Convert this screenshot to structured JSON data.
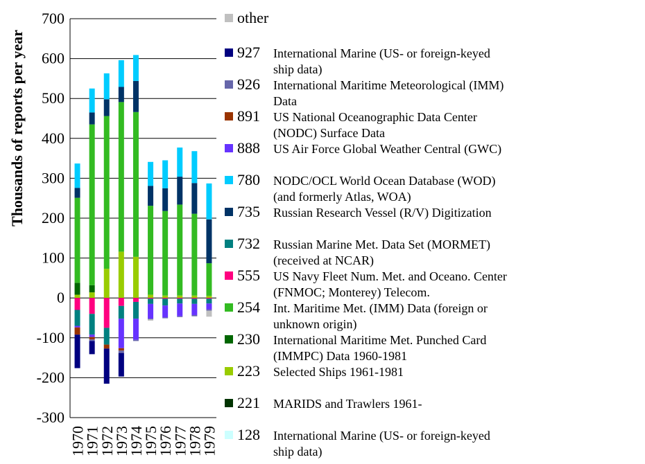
{
  "chart_data": {
    "type": "bar",
    "stacked": true,
    "ylabel": "Thousands of reports per year",
    "xlabel": "",
    "ylim": [
      -300,
      700
    ],
    "yticks": [
      700,
      600,
      500,
      400,
      300,
      200,
      100,
      0,
      -100,
      -200,
      -300
    ],
    "ytick_labels": [
      "700",
      "600",
      "500",
      "400",
      "300",
      "200",
      "100",
      "0",
      "-100",
      "-200",
      "-300"
    ],
    "categories": [
      "1970",
      "1971",
      "1972",
      "1973",
      "1974",
      "1975",
      "1976",
      "1977",
      "1978",
      "1979"
    ],
    "grid": "horizontal",
    "legend_position": "right",
    "series": [
      {
        "code": "other",
        "name": "",
        "color": "#c0c0c0",
        "values": [
          0,
          0,
          0,
          0,
          0,
          -3,
          0,
          0,
          0,
          -15
        ]
      },
      {
        "code": "927",
        "name": "International Marine (US- or foreign-keyed ship data)",
        "color": "#000080",
        "values": [
          -84,
          -33,
          -88,
          -59,
          0,
          0,
          0,
          0,
          0,
          0
        ]
      },
      {
        "code": "926",
        "name": "International Maritime Meteorological (IMM) Data",
        "color": "#6666aa",
        "values": [
          0,
          -4,
          0,
          -6,
          -3,
          -2,
          -2,
          -2,
          -3,
          -3
        ]
      },
      {
        "code": "891",
        "name": "US National Oceanographic Data Center (NODC) Surface Data",
        "color": "#993300",
        "values": [
          -18,
          -6,
          -10,
          -6,
          0,
          0,
          0,
          0,
          0,
          0
        ]
      },
      {
        "code": "888",
        "name": "US Air Force Global Weather Central (GWC)",
        "color": "#6633ff",
        "values": [
          -4,
          -6,
          0,
          -74,
          -53,
          -37,
          -30,
          -32,
          -28,
          -15
        ]
      },
      {
        "code": "780",
        "name": "NODC/OCL World Ocean Database (WOD) (and formerly Atlas, WOA)",
        "color": "#00ccff",
        "values": [
          61,
          60,
          65,
          67,
          65,
          60,
          70,
          73,
          80,
          90
        ]
      },
      {
        "code": "735",
        "name": "Russian Research Vessel (R/V) Digitization",
        "color": "#003366",
        "values": [
          25,
          30,
          42,
          38,
          78,
          50,
          57,
          70,
          77,
          110
        ]
      },
      {
        "code": "732",
        "name": "Russian Marine Met. Data Set (MORMET) (received at NCAR)",
        "color": "#008080",
        "values": [
          -40,
          -52,
          -42,
          -32,
          -42,
          -13,
          -17,
          -12,
          -13,
          -12
        ]
      },
      {
        "code": "555",
        "name": "US Navy Fleet Num. Met. and Oceano. Center (FNMOC; Monterey) Telecom.",
        "color": "#ff0080",
        "values": [
          -30,
          -40,
          -75,
          -20,
          -10,
          -2,
          -2,
          -2,
          -2,
          -2
        ]
      },
      {
        "code": "254",
        "name": "Int. Maritime Met. (IMM) Data (foreign or unknown origin)",
        "color": "#33bb22",
        "values": [
          213,
          403,
          383,
          375,
          363,
          223,
          212,
          228,
          205,
          82
        ]
      },
      {
        "code": "230",
        "name": "International Maritime Met. Punched Card (IMMPC) Data 1960-1981",
        "color": "#006600",
        "values": [
          30,
          18,
          0,
          0,
          0,
          0,
          0,
          0,
          0,
          0
        ]
      },
      {
        "code": "223",
        "name": "Selected Ships 1961-1981",
        "color": "#99cc00",
        "values": [
          8,
          14,
          73,
          116,
          103,
          8,
          6,
          6,
          6,
          5
        ]
      },
      {
        "code": "221",
        "name": "MARIDS and Trawlers 1961-",
        "color": "#003300",
        "values": [
          0,
          0,
          0,
          0,
          0,
          0,
          0,
          0,
          0,
          0
        ]
      },
      {
        "code": "128",
        "name": "International Marine (US- or foreign-keyed ship data)",
        "color": "#ccffff",
        "values": [
          0,
          0,
          0,
          0,
          0,
          0,
          0,
          0,
          0,
          0
        ]
      }
    ]
  },
  "legend": {
    "items": [
      {
        "code": "other",
        "desc_lines": [],
        "color": "#c0c0c0"
      },
      {
        "code": "927",
        "desc_lines": [
          "International Marine (US- or foreign-keyed",
          "ship data)"
        ],
        "color": "#000080"
      },
      {
        "code": "926",
        "desc_lines": [
          "International Maritime Meteorological (IMM)",
          "Data"
        ],
        "color": "#6666aa"
      },
      {
        "code": "891",
        "desc_lines": [
          "US National Oceanographic Data Center",
          "(NODC) Surface Data"
        ],
        "color": "#993300"
      },
      {
        "code": "888",
        "desc_lines": [
          "US Air Force Global Weather Central (GWC)"
        ],
        "color": "#6633ff"
      },
      {
        "code": "780",
        "desc_lines": [
          "NODC/OCL World Ocean Database (WOD)",
          "(and formerly Atlas, WOA)"
        ],
        "color": "#00ccff"
      },
      {
        "code": "735",
        "desc_lines": [
          "Russian Research Vessel (R/V) Digitization"
        ],
        "color": "#003366"
      },
      {
        "code": "732",
        "desc_lines": [
          "Russian Marine Met. Data Set (MORMET)",
          "(received at NCAR)"
        ],
        "color": "#008080"
      },
      {
        "code": "555",
        "desc_lines": [
          "US Navy Fleet Num. Met. and Oceano. Center",
          "(FNMOC; Monterey) Telecom."
        ],
        "color": "#ff0080"
      },
      {
        "code": "254",
        "desc_lines": [
          "Int. Maritime Met. (IMM) Data (foreign or",
          "unknown origin)"
        ],
        "color": "#33bb22"
      },
      {
        "code": "230",
        "desc_lines": [
          "International Maritime Met. Punched Card",
          "(IMMPC) Data  1960-1981"
        ],
        "color": "#006600"
      },
      {
        "code": "223",
        "desc_lines": [
          "Selected Ships  1961-1981"
        ],
        "color": "#99cc00"
      },
      {
        "code": "221",
        "desc_lines": [
          "MARIDS and Trawlers  1961-"
        ],
        "color": "#003300"
      },
      {
        "code": "128",
        "desc_lines": [
          "International Marine (US- or foreign-keyed",
          "ship data)"
        ],
        "color": "#ccffff"
      }
    ]
  }
}
